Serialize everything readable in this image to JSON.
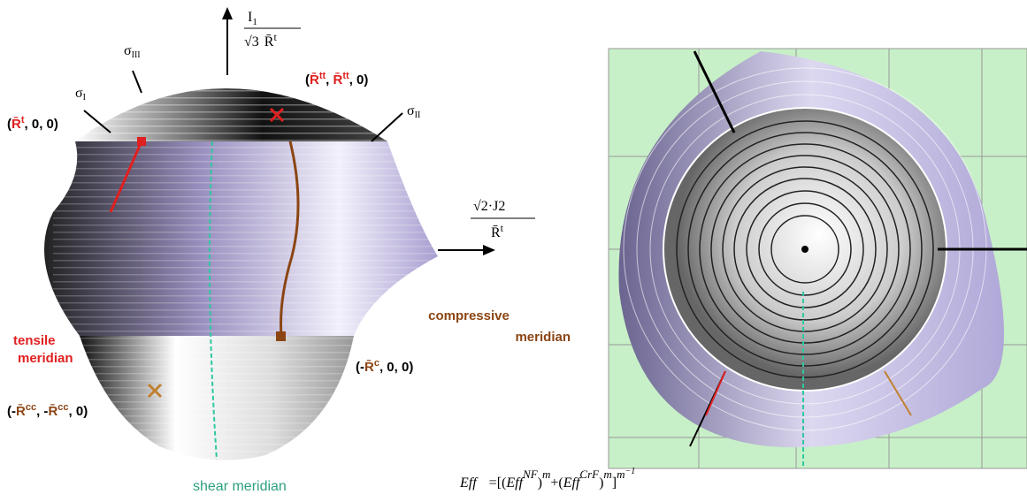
{
  "left_figure": {
    "vertical_axis": {
      "numerator": "I",
      "numerator_sub": "1",
      "root": "√3",
      "var": "R̄",
      "sup": "t"
    },
    "horizontal_axis": {
      "root": "√2·J2",
      "var": "R̄",
      "sup": "t"
    },
    "sigma_III": {
      "base": "σ",
      "sub": "III"
    },
    "sigma_I": {
      "base": "σ",
      "sub": "I"
    },
    "sigma_II": {
      "base": "σ",
      "sub": "II"
    },
    "point_tt": [
      "(",
      "R̄",
      "tt",
      ", ",
      "R̄",
      "tt",
      ", 0)"
    ],
    "point_t": [
      "(",
      "R̄",
      "t",
      ", 0, 0)"
    ],
    "point_c": [
      "(-",
      "R̄",
      "c",
      ", 0, 0)"
    ],
    "point_cc": [
      "(-",
      "R̄",
      "cc",
      ", -",
      "R̄",
      "cc",
      ", 0)"
    ],
    "compressive_meridian": [
      "compressive",
      "meridian"
    ],
    "tensile_meridian": [
      "tensile",
      "meridian"
    ],
    "shear_meridian": "shear meridian"
  },
  "formula": [
    "Eff",
    "=",
    "[(",
    "Eff",
    "NF",
    ")",
    "m",
    "+(",
    "Eff",
    "CrF",
    ")",
    "m",
    "]",
    "m",
    "−1"
  ]
}
